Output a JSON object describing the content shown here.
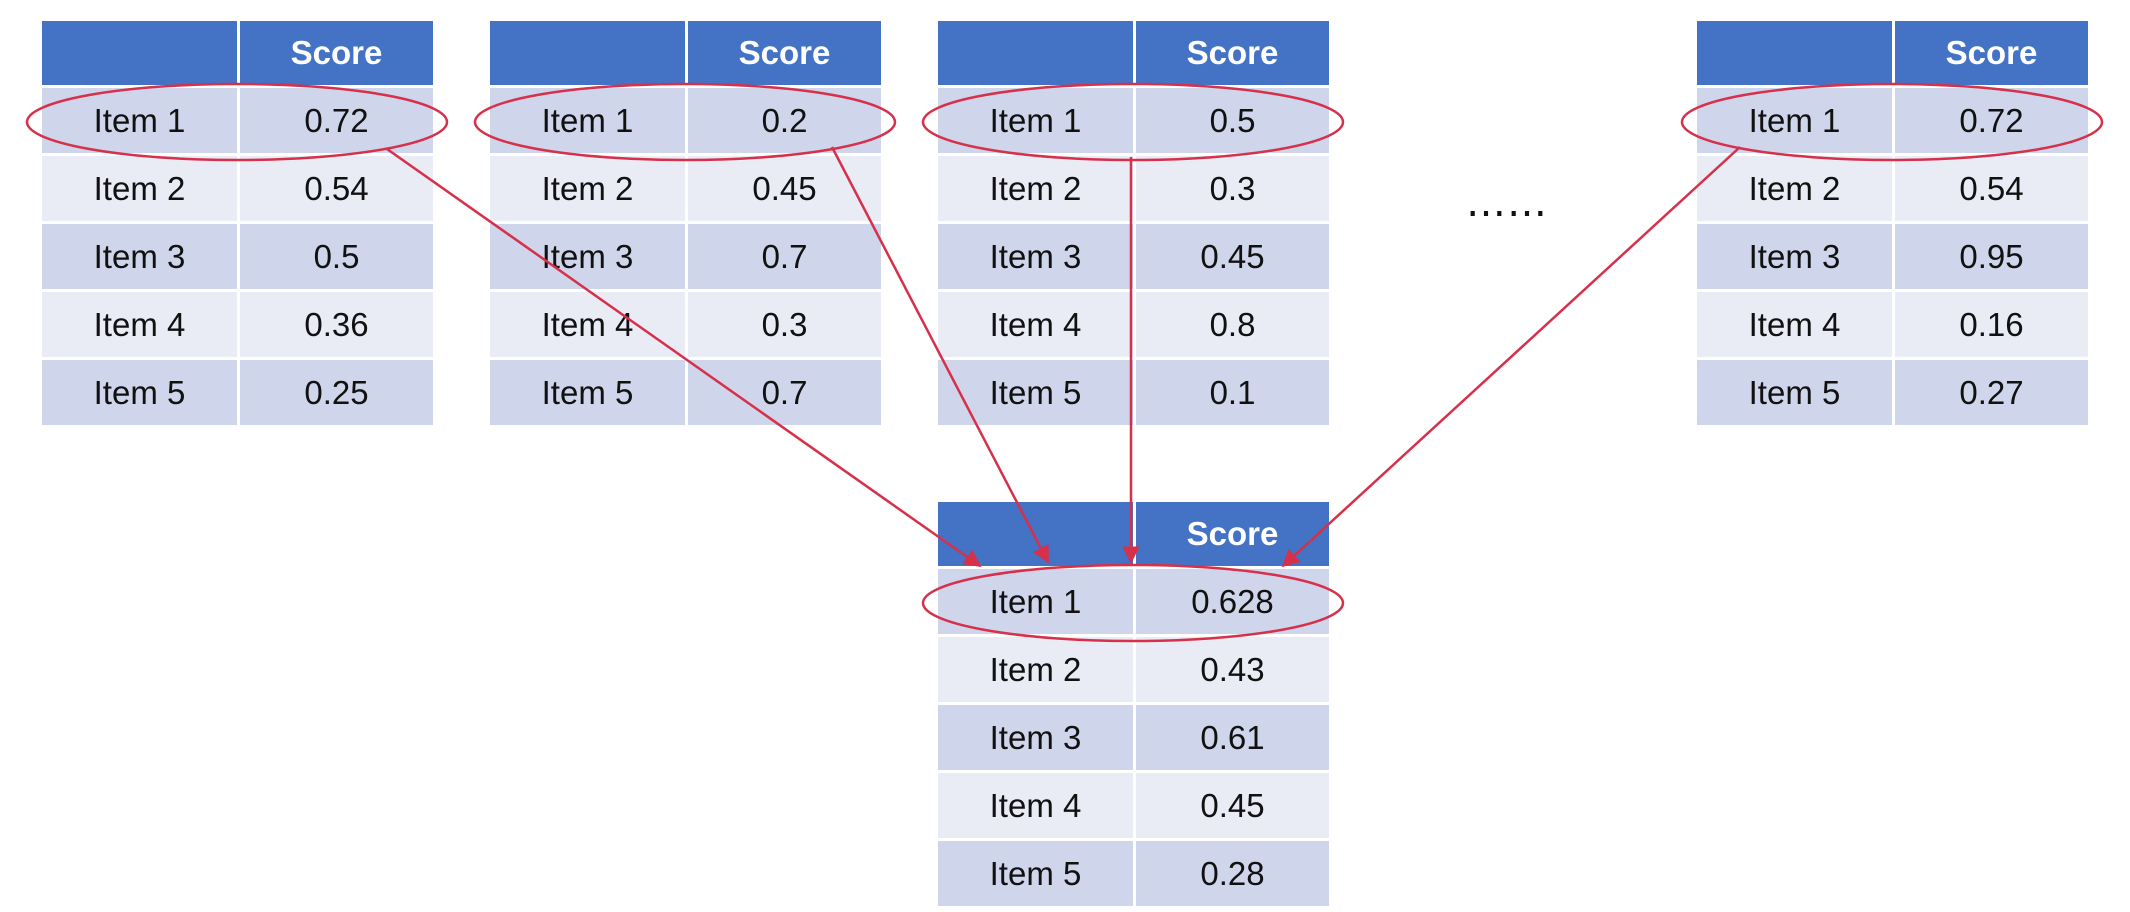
{
  "colors": {
    "header": "#4472c4",
    "row_odd": "#cfd5ea",
    "row_even": "#e9ebf5",
    "highlight": "#d6304a"
  },
  "tables": [
    {
      "header": [
        "",
        "Score"
      ],
      "rows": [
        [
          "Item 1",
          "0.72"
        ],
        [
          "Item 2",
          "0.54"
        ],
        [
          "Item 3",
          "0.5"
        ],
        [
          "Item 4",
          "0.36"
        ],
        [
          "Item 5",
          "0.25"
        ]
      ]
    },
    {
      "header": [
        "",
        "Score"
      ],
      "rows": [
        [
          "Item 1",
          "0.2"
        ],
        [
          "Item 2",
          "0.45"
        ],
        [
          "Item 3",
          "0.7"
        ],
        [
          "Item 4",
          "0.3"
        ],
        [
          "Item 5",
          "0.7"
        ]
      ]
    },
    {
      "header": [
        "",
        "Score"
      ],
      "rows": [
        [
          "Item 1",
          "0.5"
        ],
        [
          "Item 2",
          "0.3"
        ],
        [
          "Item 3",
          "0.45"
        ],
        [
          "Item 4",
          "0.8"
        ],
        [
          "Item 5",
          "0.1"
        ]
      ]
    },
    {
      "header": [
        "",
        "Score"
      ],
      "rows": [
        [
          "Item 1",
          "0.72"
        ],
        [
          "Item 2",
          "0.54"
        ],
        [
          "Item 3",
          "0.95"
        ],
        [
          "Item 4",
          "0.16"
        ],
        [
          "Item 5",
          "0.27"
        ]
      ]
    }
  ],
  "result_table": {
    "header": [
      "",
      "Score"
    ],
    "rows": [
      [
        "Item 1",
        "0.628"
      ],
      [
        "Item 2",
        "0.43"
      ],
      [
        "Item 3",
        "0.61"
      ],
      [
        "Item 4",
        "0.45"
      ],
      [
        "Item 5",
        "0.28"
      ]
    ]
  },
  "ellipsis": "……"
}
